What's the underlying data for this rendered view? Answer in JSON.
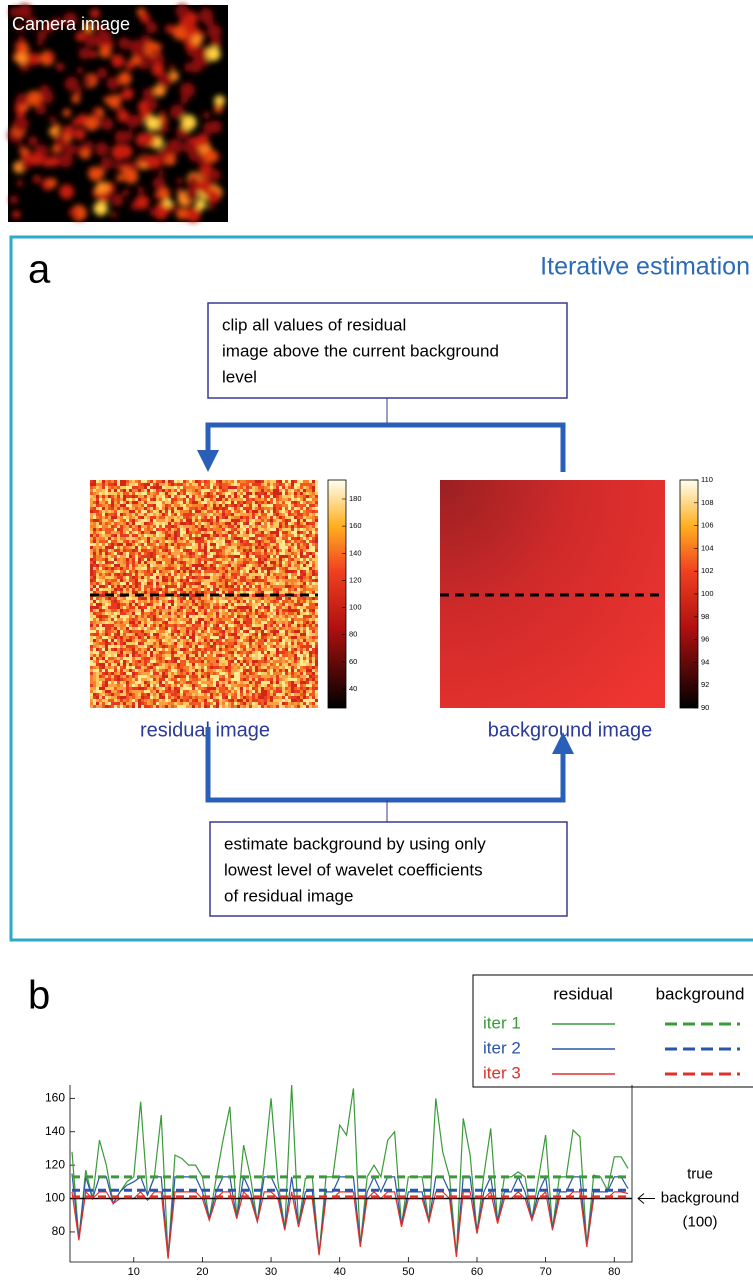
{
  "camera_image": {
    "label": "Camera image"
  },
  "panel_a": {
    "letter": "a",
    "title": "Iterative estimation",
    "top_box": [
      "clip all values of residual",
      "image above the current background",
      "level"
    ],
    "bottom_box": [
      "estimate background by using only",
      "lowest level of wavelet coefficients",
      "of residual image"
    ],
    "residual_label": "residual image",
    "background_label": "background image",
    "residual_colorbar": {
      "lim": [
        26,
        194
      ],
      "ticks": [
        40,
        60,
        80,
        100,
        120,
        140,
        160,
        180
      ]
    },
    "background_colorbar": {
      "lim": [
        90,
        110
      ],
      "ticks": [
        90,
        92,
        94,
        96,
        98,
        100,
        102,
        104,
        106,
        108,
        110
      ]
    }
  },
  "panel_b": {
    "letter": "b"
  },
  "chart_data": {
    "type": "line",
    "legend_columns": [
      "residual",
      "background"
    ],
    "annotation": [
      "true",
      "background",
      "(100)"
    ],
    "true_background": 100,
    "xlim": [
      1,
      82
    ],
    "ylim": [
      62,
      168
    ],
    "xticks": [
      10,
      20,
      30,
      40,
      50,
      60,
      70,
      80
    ],
    "yticks": [
      80,
      100,
      120,
      140,
      160
    ],
    "x": [
      1,
      2,
      3,
      4,
      5,
      6,
      7,
      8,
      9,
      10,
      11,
      12,
      13,
      14,
      15,
      16,
      17,
      18,
      19,
      20,
      21,
      22,
      23,
      24,
      25,
      26,
      27,
      28,
      29,
      30,
      31,
      32,
      33,
      34,
      35,
      36,
      37,
      38,
      39,
      40,
      41,
      42,
      43,
      44,
      45,
      46,
      47,
      48,
      49,
      50,
      51,
      52,
      53,
      54,
      55,
      56,
      57,
      58,
      59,
      60,
      61,
      62,
      63,
      64,
      65,
      66,
      67,
      68,
      69,
      70,
      71,
      72,
      73,
      74,
      75,
      76,
      77,
      78,
      79,
      80,
      81,
      82
    ],
    "series": [
      {
        "name": "iter 1",
        "color": "#3a9a3a",
        "background": 113,
        "values": [
          128,
          76,
          117,
          100,
          135,
          120,
          97,
          104,
          110,
          113,
          158,
          102,
          113,
          150,
          65,
          126,
          124,
          120,
          120,
          113,
          88,
          112,
          135,
          155,
          88,
          132,
          113,
          86,
          120,
          160,
          110,
          82,
          168,
          84,
          112,
          113,
          67,
          113,
          113,
          144,
          138,
          166,
          72,
          113,
          120,
          113,
          135,
          140,
          84,
          113,
          113,
          113,
          86,
          160,
          128,
          113,
          66,
          148,
          126,
          80,
          114,
          142,
          86,
          113,
          113,
          116,
          113,
          88,
          113,
          138,
          82,
          113,
          113,
          141,
          137,
          72,
          114,
          113,
          105,
          125,
          125,
          118
        ]
      },
      {
        "name": "iter 2",
        "color": "#2a55a8",
        "background": 105,
        "values": [
          115,
          76,
          113,
          100,
          113,
          113,
          97,
          104,
          108,
          110,
          113,
          102,
          113,
          113,
          65,
          113,
          113,
          113,
          113,
          104,
          88,
          104,
          113,
          113,
          88,
          113,
          104,
          86,
          113,
          113,
          104,
          82,
          113,
          84,
          104,
          105,
          67,
          104,
          104,
          113,
          113,
          113,
          72,
          104,
          113,
          104,
          113,
          113,
          84,
          104,
          104,
          104,
          86,
          113,
          113,
          104,
          66,
          113,
          113,
          80,
          104,
          113,
          86,
          104,
          104,
          113,
          104,
          88,
          104,
          113,
          82,
          104,
          104,
          113,
          113,
          72,
          104,
          104,
          104,
          113,
          113,
          106
        ]
      },
      {
        "name": "iter 3",
        "color": "#e0302a",
        "background": 101,
        "values": [
          104,
          75,
          104,
          100,
          104,
          104,
          97,
          100,
          100,
          100,
          104,
          99,
          104,
          104,
          64,
          104,
          104,
          104,
          104,
          100,
          87,
          100,
          104,
          104,
          88,
          104,
          100,
          86,
          104,
          104,
          100,
          81,
          104,
          83,
          100,
          100,
          66,
          100,
          100,
          104,
          104,
          104,
          71,
          100,
          104,
          100,
          104,
          104,
          83,
          100,
          100,
          100,
          86,
          104,
          104,
          100,
          65,
          104,
          104,
          79,
          100,
          104,
          85,
          100,
          100,
          104,
          100,
          87,
          100,
          104,
          81,
          100,
          100,
          104,
          104,
          71,
          100,
          100,
          100,
          104,
          104,
          103
        ]
      }
    ]
  }
}
